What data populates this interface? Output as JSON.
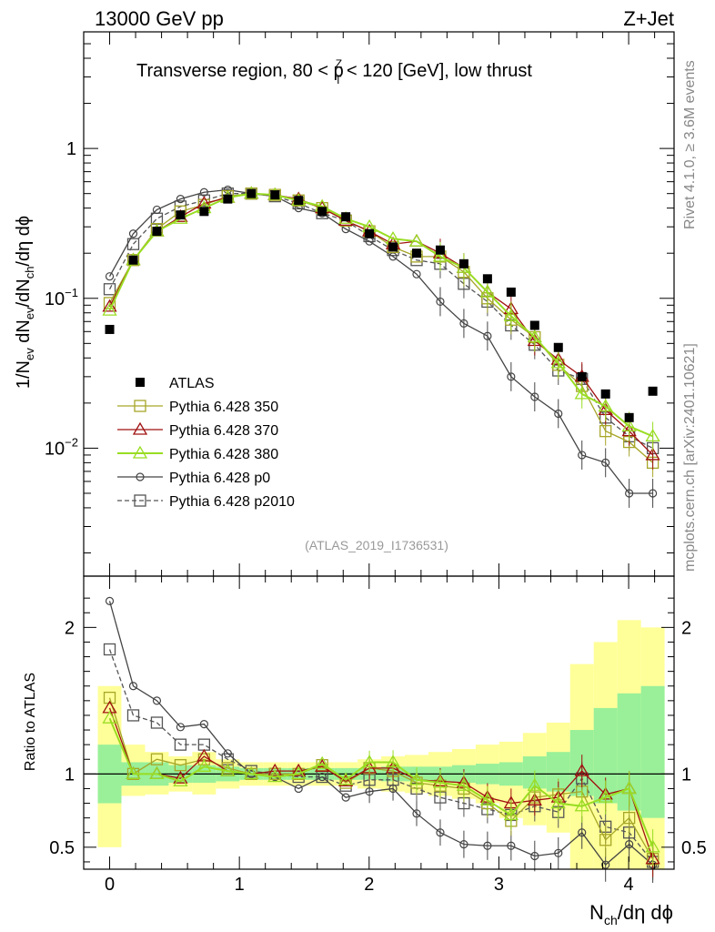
{
  "header": {
    "left": "13000 GeV pp",
    "right": "Z+Jet"
  },
  "side_label_top": "Rivet 4.1.0, ≥ 3.6M events",
  "side_label_bottom": "mcplots.cern.ch [arXiv:2401.10621]",
  "colors": {
    "atlas": "#000000",
    "p350": "#a6a628",
    "p370": "#a01010",
    "p380": "#99dd22",
    "p0": "#444444",
    "p2010": "#555555",
    "band_green": "#99f099",
    "band_yellow": "#ffff99"
  },
  "chart_data": [
    {
      "type": "scatter",
      "panel": "main",
      "title": "Transverse region, 80 < p",
      "title_sup": "Z",
      "title_sub": "T",
      "title_tail": " < 120 [GeV], low thrust",
      "xlabel": "N",
      "xlabel_sub": "ch",
      "xlabel_tail": "/dη dϕ",
      "ylabel_parts": [
        "1/N",
        "ev",
        " dN",
        "ev",
        "/dN",
        "ch",
        "/dη dϕ"
      ],
      "ylog": true,
      "ylim": [
        0.0014,
        6
      ],
      "xlim": [
        -0.2,
        4.35
      ],
      "y_ticks": [
        {
          "v": 1,
          "label": "1"
        },
        {
          "v": 0.1,
          "label": "10",
          "exp": "−1"
        },
        {
          "v": 0.01,
          "label": "10",
          "exp": "−2"
        }
      ],
      "x": [
        0,
        0.182,
        0.364,
        0.546,
        0.728,
        0.91,
        1.092,
        1.274,
        1.456,
        1.638,
        1.82,
        2.002,
        2.184,
        2.366,
        2.548,
        2.73,
        2.912,
        3.094,
        3.276,
        3.458,
        3.64,
        3.822,
        4.004,
        4.186
      ],
      "annotation": "(ATLAS_2019_I1736531)",
      "legend_position": "bottom-left",
      "series": [
        {
          "name": "ATLAS",
          "key": "atlas",
          "marker": "filled-square",
          "line": "none",
          "values": [
            0.062,
            0.18,
            0.28,
            0.36,
            0.38,
            0.46,
            0.5,
            0.49,
            0.45,
            0.38,
            0.35,
            0.27,
            0.22,
            0.2,
            0.21,
            0.17,
            0.135,
            0.11,
            0.066,
            0.047,
            0.03,
            0.023,
            0.016,
            0.024
          ]
        },
        {
          "name": "Pythia 6.428 350",
          "key": "p350",
          "marker": "open-square",
          "line": "solid",
          "values": [
            0.093,
            0.18,
            0.29,
            0.38,
            0.42,
            0.48,
            0.5,
            0.49,
            0.45,
            0.4,
            0.33,
            0.28,
            0.22,
            0.19,
            0.19,
            0.15,
            0.1,
            0.072,
            0.055,
            0.036,
            0.026,
            0.013,
            0.011,
            0.008
          ]
        },
        {
          "name": "Pythia 6.428 370",
          "key": "p370",
          "marker": "open-triangle",
          "line": "solid",
          "values": [
            0.088,
            0.18,
            0.28,
            0.35,
            0.43,
            0.47,
            0.5,
            0.49,
            0.46,
            0.4,
            0.33,
            0.28,
            0.23,
            0.24,
            0.2,
            0.16,
            0.11,
            0.085,
            0.052,
            0.039,
            0.03,
            0.018,
            0.013,
            0.009
          ]
        },
        {
          "name": "Pythia 6.428 380",
          "key": "p380",
          "marker": "open-triangle",
          "line": "solid",
          "values": [
            0.083,
            0.18,
            0.28,
            0.34,
            0.4,
            0.47,
            0.5,
            0.49,
            0.45,
            0.41,
            0.34,
            0.3,
            0.25,
            0.24,
            0.19,
            0.16,
            0.11,
            0.076,
            0.055,
            0.037,
            0.023,
            0.019,
            0.014,
            0.012
          ]
        },
        {
          "name": "Pythia 6.428 p0",
          "key": "p0",
          "marker": "open-circle",
          "line": "solid",
          "values": [
            0.14,
            0.27,
            0.39,
            0.46,
            0.51,
            0.53,
            0.5,
            0.48,
            0.4,
            0.37,
            0.29,
            0.24,
            0.19,
            0.145,
            0.095,
            0.068,
            0.056,
            0.03,
            0.022,
            0.017,
            0.009,
            0.008,
            0.005,
            0.005
          ]
        },
        {
          "name": "Pythia 6.428 p2010",
          "key": "p2010",
          "marker": "open-square",
          "line": "dashed",
          "values": [
            0.115,
            0.23,
            0.34,
            0.41,
            0.45,
            0.5,
            0.5,
            0.48,
            0.43,
            0.37,
            0.33,
            0.26,
            0.21,
            0.18,
            0.17,
            0.125,
            0.095,
            0.066,
            0.049,
            0.033,
            0.029,
            0.016,
            0.012,
            0.01
          ]
        }
      ]
    },
    {
      "type": "scatter",
      "panel": "ratio",
      "ylabel": "Ratio to ATLAS",
      "ylim": [
        0.35,
        2.35
      ],
      "xlim": [
        -0.2,
        4.35
      ],
      "y_ticks": [
        0.5,
        1,
        2
      ],
      "x_ticks": [
        0,
        1,
        2,
        3,
        4
      ],
      "reference_line": 1,
      "x": [
        0,
        0.182,
        0.364,
        0.546,
        0.728,
        0.91,
        1.092,
        1.274,
        1.456,
        1.638,
        1.82,
        2.002,
        2.184,
        2.366,
        2.548,
        2.73,
        2.912,
        3.094,
        3.276,
        3.458,
        3.64,
        3.822,
        4.004,
        4.186
      ],
      "bands": {
        "green": {
          "lo": [
            0.8,
            0.92,
            0.92,
            0.94,
            0.94,
            0.95,
            0.96,
            0.96,
            0.96,
            0.96,
            0.96,
            0.96,
            0.95,
            0.95,
            0.95,
            0.94,
            0.93,
            0.92,
            0.9,
            0.88,
            0.85,
            0.8,
            0.75,
            0.7
          ],
          "hi": [
            1.2,
            1.08,
            1.08,
            1.06,
            1.06,
            1.05,
            1.04,
            1.04,
            1.04,
            1.04,
            1.04,
            1.04,
            1.05,
            1.05,
            1.05,
            1.06,
            1.07,
            1.08,
            1.12,
            1.15,
            1.3,
            1.45,
            1.55,
            1.6
          ]
        },
        "yellow": {
          "lo": [
            0.5,
            0.85,
            0.86,
            0.88,
            0.86,
            0.9,
            0.92,
            0.92,
            0.92,
            0.92,
            0.92,
            0.9,
            0.88,
            0.87,
            0.85,
            0.83,
            0.8,
            0.7,
            0.65,
            0.6,
            0.35,
            0.35,
            0.35,
            0.35
          ],
          "hi": [
            1.6,
            1.2,
            1.15,
            1.12,
            1.15,
            1.1,
            1.08,
            1.08,
            1.08,
            1.08,
            1.08,
            1.1,
            1.12,
            1.13,
            1.15,
            1.17,
            1.2,
            1.22,
            1.28,
            1.35,
            1.75,
            1.9,
            2.05,
            2.0
          ]
        }
      },
      "series": [
        {
          "key": "p350",
          "values": [
            1.52,
            1.0,
            1.1,
            1.06,
            1.1,
            1.04,
            1.0,
            1.0,
            1.0,
            1.06,
            0.94,
            1.04,
            1.02,
            0.94,
            0.92,
            0.9,
            0.8,
            0.68,
            0.84,
            0.86,
            0.88,
            0.55,
            0.7,
            0.42
          ]
        },
        {
          "key": "p370",
          "values": [
            1.45,
            1.0,
            1.0,
            0.97,
            1.12,
            1.02,
            1.0,
            1.02,
            1.02,
            1.05,
            0.95,
            1.04,
            1.04,
            0.96,
            0.95,
            0.94,
            0.84,
            0.8,
            0.82,
            0.84,
            1.02,
            0.86,
            0.9,
            0.42
          ]
        },
        {
          "key": "p380",
          "values": [
            1.38,
            1.0,
            1.0,
            0.95,
            1.05,
            1.02,
            1.0,
            0.98,
            1.0,
            1.07,
            0.96,
            1.08,
            1.08,
            0.96,
            0.94,
            0.92,
            0.82,
            0.72,
            0.92,
            0.8,
            0.78,
            0.84,
            0.9,
            0.5
          ]
        },
        {
          "key": "p0",
          "values": [
            2.18,
            1.6,
            1.5,
            1.32,
            1.34,
            1.14,
            1.0,
            0.98,
            0.9,
            0.98,
            0.84,
            0.88,
            0.9,
            0.73,
            0.6,
            0.52,
            0.51,
            0.51,
            0.44,
            0.46,
            0.6,
            0.38,
            0.52,
            0.38
          ]
        },
        {
          "key": "p2010",
          "values": [
            1.85,
            1.4,
            1.35,
            1.2,
            1.2,
            1.1,
            1.02,
            1.0,
            0.98,
            0.98,
            0.92,
            0.96,
            0.96,
            0.9,
            0.84,
            0.8,
            0.76,
            0.72,
            0.78,
            0.74,
            0.97,
            0.64,
            0.6,
            0.4
          ]
        }
      ]
    }
  ]
}
